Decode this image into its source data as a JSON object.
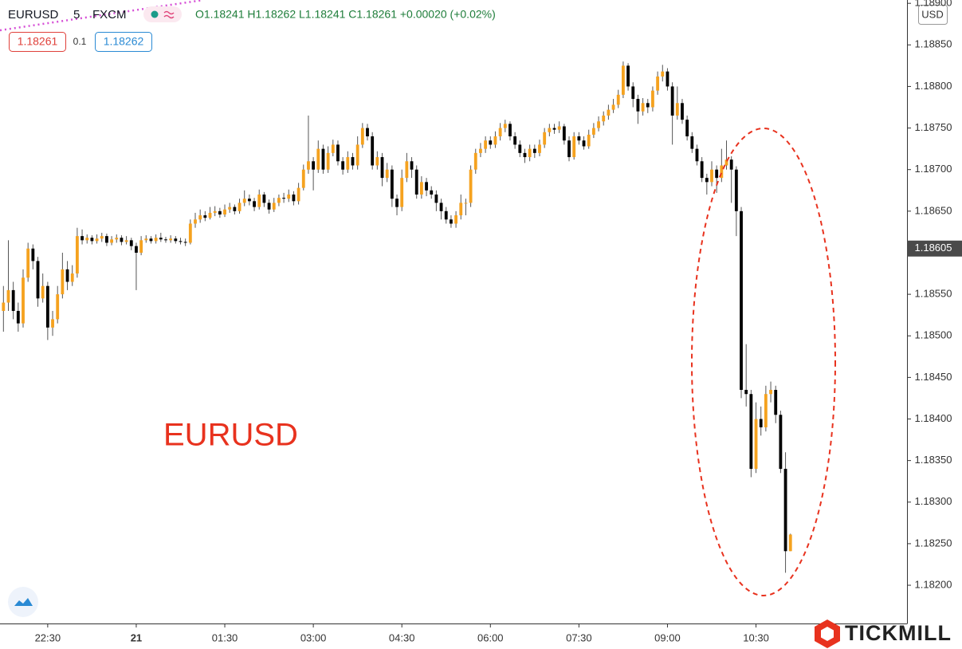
{
  "chart_data": {
    "type": "candlestick",
    "header": {
      "symbol": "EURUSD",
      "interval": "5",
      "exchange": "FXCM",
      "ohlc": "O1.18241 H1.18262 L1.18241 C1.18261 +0.00020 (+0.02%)",
      "bid": "1.18261",
      "spread": "0.1",
      "ask": "1.18262"
    },
    "currency": "USD",
    "annotation": "EURUSD",
    "brand": "TICKMILL",
    "up_color": "#f5a21f",
    "down_color": "#000000",
    "grid": false,
    "price_label": 1.18605,
    "xlim": [
      -0.7,
      183.7
    ],
    "xticks": [
      {
        "value": 9,
        "label": "22:30"
      },
      {
        "value": 27,
        "label": "21"
      },
      {
        "value": 45,
        "label": "01:30"
      },
      {
        "value": 63,
        "label": "03:00"
      },
      {
        "value": 81,
        "label": "04:30"
      },
      {
        "value": 99,
        "label": "06:00"
      },
      {
        "value": 117,
        "label": "07:30"
      },
      {
        "value": 135,
        "label": "09:00"
      },
      {
        "value": 153,
        "label": "10:30"
      }
    ],
    "ylim": [
      1.18154,
      1.18904
    ],
    "yticks": [
      {
        "value": 1.182,
        "label": "1.18200"
      },
      {
        "value": 1.1825,
        "label": "1.18250"
      },
      {
        "value": 1.183,
        "label": "1.18300"
      },
      {
        "value": 1.1835,
        "label": "1.18350"
      },
      {
        "value": 1.184,
        "label": "1.18400"
      },
      {
        "value": 1.1845,
        "label": "1.18450"
      },
      {
        "value": 1.185,
        "label": "1.18500"
      },
      {
        "value": 1.1855,
        "label": "1.18550"
      },
      {
        "value": 1.186,
        "label": "1.18600"
      },
      {
        "value": 1.1865,
        "label": "1.18650"
      },
      {
        "value": 1.187,
        "label": "1.18700"
      },
      {
        "value": 1.1875,
        "label": "1.18750"
      },
      {
        "value": 1.188,
        "label": "1.18800"
      },
      {
        "value": 1.1885,
        "label": "1.18850"
      },
      {
        "value": 1.189,
        "label": "1.18900"
      }
    ],
    "candles": [
      [
        1.1853,
        1.1856,
        1.18505,
        1.1854
      ],
      [
        1.1854,
        1.18615,
        1.1853,
        1.18555
      ],
      [
        1.18555,
        1.18565,
        1.1852,
        1.1853
      ],
      [
        1.1853,
        1.1854,
        1.18505,
        1.18515
      ],
      [
        1.18515,
        1.1858,
        1.1851,
        1.1857
      ],
      [
        1.1857,
        1.18612,
        1.18565,
        1.18605
      ],
      [
        1.18605,
        1.1861,
        1.1858,
        1.1859
      ],
      [
        1.1859,
        1.18595,
        1.18535,
        1.18545
      ],
      [
        1.18545,
        1.18575,
        1.1854,
        1.1856
      ],
      [
        1.1856,
        1.18565,
        1.18495,
        1.1851
      ],
      [
        1.1851,
        1.1853,
        1.185,
        1.1852
      ],
      [
        1.1852,
        1.1856,
        1.18515,
        1.1855
      ],
      [
        1.1855,
        1.186,
        1.18545,
        1.1858
      ],
      [
        1.1858,
        1.1859,
        1.18555,
        1.18565
      ],
      [
        1.18565,
        1.18585,
        1.1856,
        1.18575
      ],
      [
        1.18575,
        1.1863,
        1.1857,
        1.1862
      ],
      [
        1.1862,
        1.18628,
        1.1861,
        1.18615
      ],
      [
        1.18615,
        1.18622,
        1.18611,
        1.18618
      ],
      [
        1.18618,
        1.18621,
        1.1861,
        1.18614
      ],
      [
        1.18614,
        1.18622,
        1.18611,
        1.18617
      ],
      [
        1.18617,
        1.18624,
        1.18613,
        1.1862
      ],
      [
        1.1862,
        1.18623,
        1.18608,
        1.18612
      ],
      [
        1.18612,
        1.1862,
        1.18609,
        1.18616
      ],
      [
        1.18616,
        1.18622,
        1.18612,
        1.18618
      ],
      [
        1.18618,
        1.18621,
        1.18609,
        1.18613
      ],
      [
        1.18613,
        1.1862,
        1.1861,
        1.18615
      ],
      [
        1.18615,
        1.18618,
        1.18603,
        1.18608
      ],
      [
        1.18608,
        1.18612,
        1.18555,
        1.186
      ],
      [
        1.186,
        1.1862,
        1.18597,
        1.18615
      ],
      [
        1.18615,
        1.18621,
        1.18612,
        1.18617
      ],
      [
        1.18617,
        1.1862,
        1.18611,
        1.18614
      ],
      [
        1.18614,
        1.18622,
        1.18611,
        1.18618
      ],
      [
        1.18618,
        1.18624,
        1.18613,
        1.18616
      ],
      [
        1.18616,
        1.18619,
        1.18612,
        1.18615
      ],
      [
        1.18615,
        1.18621,
        1.18612,
        1.18617
      ],
      [
        1.18617,
        1.1862,
        1.18611,
        1.18614
      ],
      [
        1.18614,
        1.18618,
        1.1861,
        1.18613
      ],
      [
        1.18613,
        1.18617,
        1.18608,
        1.18612
      ],
      [
        1.18612,
        1.1864,
        1.1861,
        1.18635
      ],
      [
        1.18635,
        1.18648,
        1.1863,
        1.1864
      ],
      [
        1.1864,
        1.18652,
        1.18636,
        1.18645
      ],
      [
        1.18645,
        1.1865,
        1.18638,
        1.18642
      ],
      [
        1.18642,
        1.18655,
        1.1864,
        1.18648
      ],
      [
        1.18648,
        1.18656,
        1.18644,
        1.1865
      ],
      [
        1.1865,
        1.18654,
        1.18642,
        1.18646
      ],
      [
        1.18646,
        1.18658,
        1.18643,
        1.18652
      ],
      [
        1.18652,
        1.1866,
        1.18648,
        1.18655
      ],
      [
        1.18655,
        1.18658,
        1.18646,
        1.1865
      ],
      [
        1.1865,
        1.18665,
        1.18647,
        1.1866
      ],
      [
        1.1866,
        1.18675,
        1.18656,
        1.18665
      ],
      [
        1.18665,
        1.1867,
        1.18657,
        1.18662
      ],
      [
        1.18662,
        1.18666,
        1.1865,
        1.18655
      ],
      [
        1.18655,
        1.18676,
        1.18652,
        1.1867
      ],
      [
        1.1867,
        1.18673,
        1.18655,
        1.1866
      ],
      [
        1.1866,
        1.18664,
        1.18647,
        1.18652
      ],
      [
        1.18652,
        1.18666,
        1.18649,
        1.1866
      ],
      [
        1.1866,
        1.1867,
        1.18656,
        1.18666
      ],
      [
        1.18666,
        1.18672,
        1.1866,
        1.18665
      ],
      [
        1.18665,
        1.18676,
        1.18661,
        1.1867
      ],
      [
        1.1867,
        1.18674,
        1.18657,
        1.18662
      ],
      [
        1.18662,
        1.18684,
        1.18658,
        1.18678
      ],
      [
        1.18678,
        1.18706,
        1.18675,
        1.187
      ],
      [
        1.187,
        1.18765,
        1.18695,
        1.1871
      ],
      [
        1.1871,
        1.18715,
        1.18675,
        1.187
      ],
      [
        1.187,
        1.18735,
        1.18696,
        1.18725
      ],
      [
        1.18725,
        1.1873,
        1.18695,
        1.187
      ],
      [
        1.187,
        1.18728,
        1.18696,
        1.1872
      ],
      [
        1.1872,
        1.18736,
        1.18716,
        1.1873
      ],
      [
        1.1873,
        1.18735,
        1.18705,
        1.1871
      ],
      [
        1.1871,
        1.18715,
        1.18694,
        1.187
      ],
      [
        1.187,
        1.18722,
        1.18696,
        1.18715
      ],
      [
        1.18715,
        1.1872,
        1.187,
        1.18705
      ],
      [
        1.18705,
        1.1874,
        1.187,
        1.1873
      ],
      [
        1.1873,
        1.18756,
        1.18726,
        1.1875
      ],
      [
        1.1875,
        1.18755,
        1.18735,
        1.1874
      ],
      [
        1.1874,
        1.18745,
        1.187,
        1.18705
      ],
      [
        1.18705,
        1.18722,
        1.187,
        1.18715
      ],
      [
        1.18715,
        1.1872,
        1.1868,
        1.1869
      ],
      [
        1.1869,
        1.18708,
        1.18685,
        1.187
      ],
      [
        1.187,
        1.18705,
        1.18655,
        1.18665
      ],
      [
        1.18665,
        1.1867,
        1.18645,
        1.18655
      ],
      [
        1.18655,
        1.187,
        1.1865,
        1.1869
      ],
      [
        1.1869,
        1.1872,
        1.18685,
        1.1871
      ],
      [
        1.1871,
        1.18715,
        1.1869,
        1.187
      ],
      [
        1.187,
        1.18705,
        1.18665,
        1.1867
      ],
      [
        1.1867,
        1.18692,
        1.18665,
        1.18685
      ],
      [
        1.18685,
        1.1869,
        1.18668,
        1.18675
      ],
      [
        1.18675,
        1.1868,
        1.18665,
        1.1867
      ],
      [
        1.1867,
        1.18675,
        1.1865,
        1.1866
      ],
      [
        1.1866,
        1.18665,
        1.1864,
        1.1865
      ],
      [
        1.1865,
        1.18655,
        1.18635,
        1.1864
      ],
      [
        1.1864,
        1.18645,
        1.1863,
        1.18635
      ],
      [
        1.18635,
        1.1865,
        1.1863,
        1.18645
      ],
      [
        1.18645,
        1.1867,
        1.1864,
        1.1866
      ],
      [
        1.1866,
        1.18665,
        1.18645,
        1.1866
      ],
      [
        1.1866,
        1.18705,
        1.18655,
        1.187
      ],
      [
        1.187,
        1.18725,
        1.18695,
        1.1872
      ],
      [
        1.1872,
        1.18732,
        1.18715,
        1.18725
      ],
      [
        1.18725,
        1.1874,
        1.1872,
        1.18735
      ],
      [
        1.18735,
        1.1874,
        1.18725,
        1.1873
      ],
      [
        1.1873,
        1.18746,
        1.18726,
        1.1874
      ],
      [
        1.1874,
        1.18756,
        1.18735,
        1.1875
      ],
      [
        1.1875,
        1.1876,
        1.18745,
        1.18755
      ],
      [
        1.18755,
        1.18758,
        1.18735,
        1.1874
      ],
      [
        1.1874,
        1.18745,
        1.18725,
        1.1873
      ],
      [
        1.1873,
        1.18735,
        1.18715,
        1.1872
      ],
      [
        1.1872,
        1.18725,
        1.18708,
        1.18715
      ],
      [
        1.18715,
        1.1873,
        1.1871,
        1.18725
      ],
      [
        1.18725,
        1.1873,
        1.18714,
        1.1872
      ],
      [
        1.1872,
        1.18736,
        1.18716,
        1.1873
      ],
      [
        1.1873,
        1.1875,
        1.18726,
        1.18745
      ],
      [
        1.18745,
        1.18755,
        1.1874,
        1.1875
      ],
      [
        1.1875,
        1.18755,
        1.18743,
        1.18748
      ],
      [
        1.18748,
        1.18758,
        1.18744,
        1.18752
      ],
      [
        1.18752,
        1.18755,
        1.1873,
        1.18735
      ],
      [
        1.18735,
        1.1874,
        1.1871,
        1.18715
      ],
      [
        1.18715,
        1.18745,
        1.18712,
        1.1874
      ],
      [
        1.1874,
        1.18745,
        1.1873,
        1.18735
      ],
      [
        1.18735,
        1.1874,
        1.18724,
        1.18728
      ],
      [
        1.18728,
        1.18748,
        1.18725,
        1.18742
      ],
      [
        1.18742,
        1.18756,
        1.18738,
        1.1875
      ],
      [
        1.1875,
        1.18764,
        1.18746,
        1.18758
      ],
      [
        1.18758,
        1.1877,
        1.18753,
        1.18765
      ],
      [
        1.18765,
        1.18778,
        1.1876,
        1.18772
      ],
      [
        1.18772,
        1.18785,
        1.18768,
        1.18778
      ],
      [
        1.18778,
        1.18796,
        1.18774,
        1.1879
      ],
      [
        1.1879,
        1.1883,
        1.18786,
        1.18825
      ],
      [
        1.18825,
        1.18828,
        1.18795,
        1.188
      ],
      [
        1.188,
        1.18805,
        1.18775,
        1.18785
      ],
      [
        1.18785,
        1.1879,
        1.18755,
        1.1877
      ],
      [
        1.1877,
        1.18786,
        1.18765,
        1.1878
      ],
      [
        1.1878,
        1.18785,
        1.18768,
        1.18775
      ],
      [
        1.18775,
        1.188,
        1.1877,
        1.18795
      ],
      [
        1.18795,
        1.18818,
        1.1879,
        1.18812
      ],
      [
        1.18812,
        1.18826,
        1.18806,
        1.18818
      ],
      [
        1.18818,
        1.18822,
        1.18795,
        1.188
      ],
      [
        1.188,
        1.18805,
        1.1873,
        1.18765
      ],
      [
        1.18765,
        1.188,
        1.1876,
        1.1878
      ],
      [
        1.1878,
        1.18785,
        1.18755,
        1.1876
      ],
      [
        1.1876,
        1.18765,
        1.18735,
        1.1874
      ],
      [
        1.1874,
        1.18745,
        1.1872,
        1.18725
      ],
      [
        1.18725,
        1.1873,
        1.18705,
        1.1871
      ],
      [
        1.1871,
        1.18715,
        1.18685,
        1.1869
      ],
      [
        1.1869,
        1.18695,
        1.1867,
        1.18685
      ],
      [
        1.18685,
        1.1871,
        1.1868,
        1.187
      ],
      [
        1.187,
        1.18705,
        1.18672,
        1.1869
      ],
      [
        1.1869,
        1.18725,
        1.18685,
        1.18705
      ],
      [
        1.18705,
        1.18735,
        1.187,
        1.18712
      ],
      [
        1.18712,
        1.18716,
        1.1866,
        1.187
      ],
      [
        1.187,
        1.18704,
        1.1862,
        1.1865
      ],
      [
        1.1865,
        1.18655,
        1.18425,
        1.18435
      ],
      [
        1.18435,
        1.1849,
        1.18415,
        1.1843
      ],
      [
        1.1843,
        1.18435,
        1.1833,
        1.1834
      ],
      [
        1.1834,
        1.1842,
        1.18335,
        1.184
      ],
      [
        1.184,
        1.18415,
        1.1838,
        1.1839
      ],
      [
        1.1839,
        1.1844,
        1.18385,
        1.1843
      ],
      [
        1.1843,
        1.18445,
        1.1842,
        1.18435
      ],
      [
        1.18435,
        1.1844,
        1.18395,
        1.18405
      ],
      [
        1.18405,
        1.1841,
        1.18335,
        1.1834
      ],
      [
        1.1834,
        1.1836,
        1.18215,
        1.18241
      ],
      [
        1.18241,
        1.18262,
        1.18241,
        1.18261
      ]
    ]
  }
}
